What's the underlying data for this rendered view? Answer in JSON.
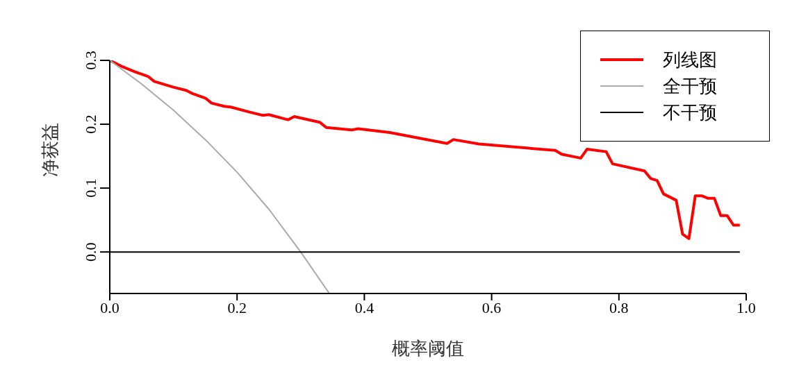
{
  "chart_data": {
    "type": "line",
    "xlabel": "概率阈值",
    "ylabel": "净获益",
    "xlim": [
      0,
      1
    ],
    "xticks": [
      {
        "value": 0,
        "label": "0.0"
      },
      0.2,
      0.4,
      0.6,
      0.8,
      {
        "value": 1,
        "label": "1.0"
      }
    ],
    "ylim": [
      -0.065,
      0.3
    ],
    "yticks": [
      {
        "value": 0,
        "label": "0.0"
      },
      0.1,
      0.2,
      0.3
    ],
    "legend": "top right",
    "marker": "none",
    "line_style": "solid",
    "series": [
      {
        "name": "列线图",
        "color": "#ff0000",
        "x": [
          0,
          0.01,
          0.02,
          0.04,
          0.06,
          0.07,
          0.1,
          0.12,
          0.13,
          0.15,
          0.16,
          0.18,
          0.19,
          0.22,
          0.24,
          0.25,
          0.28,
          0.29,
          0.33,
          0.34,
          0.38,
          0.39,
          0.44,
          0.53,
          0.54,
          0.58,
          0.7,
          0.71,
          0.74,
          0.75,
          0.78,
          0.79,
          0.84,
          0.85,
          0.86,
          0.87,
          0.89,
          0.9,
          0.91,
          0.92,
          0.93,
          0.94,
          0.95,
          0.96,
          0.97,
          0.98,
          0.99
        ],
        "values": [
          0.3,
          0.295,
          0.29,
          0.282,
          0.275,
          0.267,
          0.258,
          0.253,
          0.248,
          0.241,
          0.233,
          0.228,
          0.227,
          0.219,
          0.214,
          0.215,
          0.207,
          0.212,
          0.203,
          0.195,
          0.191,
          0.193,
          0.187,
          0.17,
          0.176,
          0.169,
          0.159,
          0.153,
          0.147,
          0.161,
          0.157,
          0.138,
          0.127,
          0.115,
          0.112,
          0.091,
          0.081,
          0.028,
          0.021,
          0.088,
          0.088,
          0.084,
          0.084,
          0.057,
          0.057,
          0.042,
          0.042
        ]
      },
      {
        "name": "全干预",
        "color": "#aaaaaa",
        "x": [
          0,
          0.05,
          0.1,
          0.15,
          0.2,
          0.25,
          0.3,
          0.345
        ],
        "values": [
          0.3,
          0.263,
          0.222,
          0.176,
          0.125,
          0.067,
          0,
          -0.065
        ]
      },
      {
        "name": "不干预",
        "color": "#000000",
        "x": [
          0,
          0.99
        ],
        "values": [
          0,
          0
        ]
      }
    ]
  }
}
